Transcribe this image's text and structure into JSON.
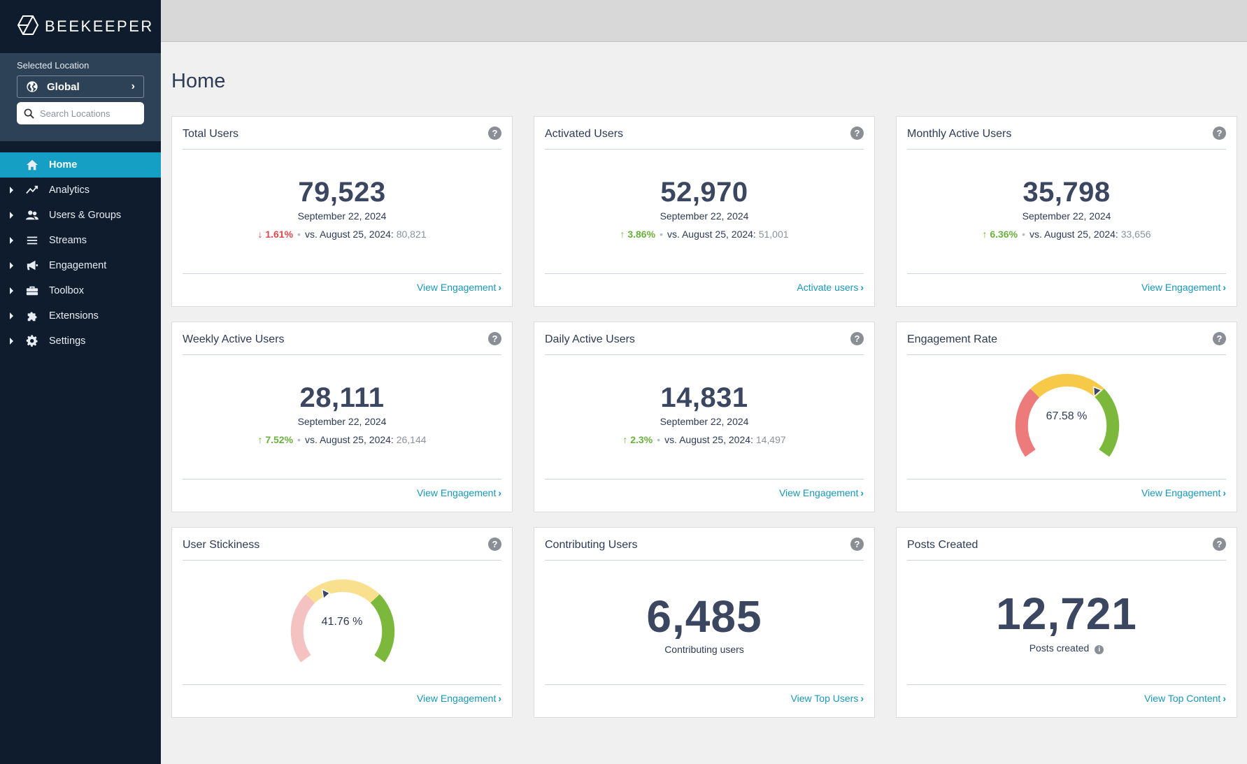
{
  "brand": {
    "name": "BEEKEEPER"
  },
  "location": {
    "label": "Selected Location",
    "selected": "Global",
    "search_placeholder": "Search Locations"
  },
  "nav": [
    {
      "label": "Home",
      "icon": "home-icon",
      "active": true
    },
    {
      "label": "Analytics",
      "icon": "chart-line-icon"
    },
    {
      "label": "Users & Groups",
      "icon": "users-icon"
    },
    {
      "label": "Streams",
      "icon": "list-icon"
    },
    {
      "label": "Engagement",
      "icon": "megaphone-icon"
    },
    {
      "label": "Toolbox",
      "icon": "toolbox-icon"
    },
    {
      "label": "Extensions",
      "icon": "puzzle-icon"
    },
    {
      "label": "Settings",
      "icon": "gear-icon"
    }
  ],
  "page": {
    "title": "Home"
  },
  "cards": {
    "total_users": {
      "title": "Total Users",
      "value": "79,523",
      "date": "September 22, 2024",
      "change": "1.61%",
      "direction": "down",
      "vs": "vs. August 25, 2024:",
      "prev": "80,821",
      "link": "View Engagement"
    },
    "activated_users": {
      "title": "Activated Users",
      "value": "52,970",
      "date": "September 22, 2024",
      "change": "3.86%",
      "direction": "up",
      "vs": "vs. August 25, 2024:",
      "prev": "51,001",
      "link": "Activate users"
    },
    "monthly_active_users": {
      "title": "Monthly Active Users",
      "value": "35,798",
      "date": "September 22, 2024",
      "change": "6.36%",
      "direction": "up",
      "vs": "vs. August 25, 2024:",
      "prev": "33,656",
      "link": "View Engagement"
    },
    "weekly_active_users": {
      "title": "Weekly Active Users",
      "value": "28,111",
      "date": "September 22, 2024",
      "change": "7.52%",
      "direction": "up",
      "vs": "vs. August 25, 2024:",
      "prev": "26,144",
      "link": "View Engagement"
    },
    "daily_active_users": {
      "title": "Daily Active Users",
      "value": "14,831",
      "date": "September 22, 2024",
      "change": "2.3%",
      "direction": "up",
      "vs": "vs. August 25, 2024:",
      "prev": "14,497",
      "link": "View Engagement"
    },
    "engagement_rate": {
      "title": "Engagement Rate",
      "value_text": "67.58 %",
      "value": 67.58,
      "link": "View Engagement"
    },
    "user_stickiness": {
      "title": "User Stickiness",
      "value_text": "41.76 %",
      "value": 41.76,
      "link": "View Engagement"
    },
    "contributing_users": {
      "title": "Contributing Users",
      "value": "6,485",
      "sub": "Contributing users",
      "link": "View Top Users"
    },
    "posts_created": {
      "title": "Posts Created",
      "value": "12,721",
      "sub": "Posts created",
      "link": "View Top Content"
    }
  },
  "colors": {
    "accent": "#159fc4",
    "link": "#1997b8",
    "up": "#6ab03c",
    "down": "#e0474c",
    "gauge_red": "#ee7b7b",
    "gauge_yellow": "#f7c948",
    "gauge_green": "#7bb83c"
  }
}
